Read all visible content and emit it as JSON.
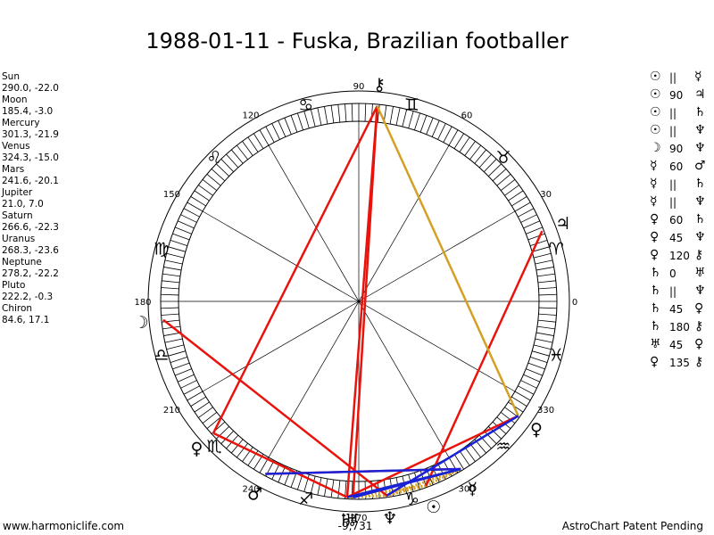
{
  "title": "1988-01-11 - Fuska, Brazilian footballer",
  "positions": [
    {
      "name": "Sun",
      "coords": "290.0, -22.0"
    },
    {
      "name": "Moon",
      "coords": "185.4, -3.0"
    },
    {
      "name": "Mercury",
      "coords": "301.3, -21.9"
    },
    {
      "name": "Venus",
      "coords": "324.3, -15.0"
    },
    {
      "name": "Mars",
      "coords": "241.6, -20.1"
    },
    {
      "name": "Jupiter",
      "coords": "21.0, 7.0"
    },
    {
      "name": "Saturn",
      "coords": "266.6, -22.3"
    },
    {
      "name": "Uranus",
      "coords": "268.3, -23.6"
    },
    {
      "name": "Neptune",
      "coords": "278.2, -22.2"
    },
    {
      "name": "Pluto",
      "coords": "222.2, -0.3"
    },
    {
      "name": "Chiron",
      "coords": "84.6, 17.1"
    }
  ],
  "aspects": [
    {
      "a": "☉",
      "m": "||",
      "b": "☿"
    },
    {
      "a": "☉",
      "m": "90",
      "b": "♃"
    },
    {
      "a": "☉",
      "m": "||",
      "b": "♄"
    },
    {
      "a": "☉",
      "m": "||",
      "b": "♆"
    },
    {
      "a": "☽",
      "m": "90",
      "b": "♆"
    },
    {
      "a": "☿",
      "m": "60",
      "b": "♂"
    },
    {
      "a": "☿",
      "m": "||",
      "b": "♄"
    },
    {
      "a": "☿",
      "m": "||",
      "b": "♆"
    },
    {
      "a": "♀",
      "m": "60",
      "b": "♄"
    },
    {
      "a": "♀",
      "m": "45",
      "b": "♆"
    },
    {
      "a": "♀",
      "m": "120",
      "b": "⚷"
    },
    {
      "a": "♄",
      "m": "0",
      "b": "♅"
    },
    {
      "a": "♄",
      "m": "||",
      "b": "♆"
    },
    {
      "a": "♄",
      "m": "45",
      "b": "♀"
    },
    {
      "a": "♄",
      "m": "180",
      "b": "⚷"
    },
    {
      "a": "♅",
      "m": "45",
      "b": "♀"
    },
    {
      "a": "♀",
      "m": "135",
      "b": "⚷"
    }
  ],
  "wheel": {
    "degree_labels": [
      {
        "text": "0",
        "deg": 0
      },
      {
        "text": "30",
        "deg": 30
      },
      {
        "text": "60",
        "deg": 60
      },
      {
        "text": "90",
        "deg": 90
      },
      {
        "text": "120",
        "deg": 120
      },
      {
        "text": "150",
        "deg": 150
      },
      {
        "text": "180",
        "deg": 180
      },
      {
        "text": "210",
        "deg": 210
      },
      {
        "text": "240",
        "deg": 240
      },
      {
        "text": "270",
        "deg": 270
      },
      {
        "text": "300",
        "deg": 300
      },
      {
        "text": "330",
        "deg": 330
      }
    ],
    "bottom_readout": "-9,731",
    "signs": [
      {
        "glyph": "♈",
        "deg": 15,
        "name": "aries"
      },
      {
        "glyph": "♉",
        "deg": 45,
        "name": "taurus"
      },
      {
        "glyph": "♊",
        "deg": 75,
        "name": "gemini"
      },
      {
        "glyph": "♋",
        "deg": 105,
        "name": "cancer"
      },
      {
        "glyph": "♌",
        "deg": 135,
        "name": "leo"
      },
      {
        "glyph": "♍",
        "deg": 165,
        "name": "virgo"
      },
      {
        "glyph": "♎",
        "deg": 195,
        "name": "libra"
      },
      {
        "glyph": "♏",
        "deg": 225,
        "name": "scorpio"
      },
      {
        "glyph": "♐",
        "deg": 255,
        "name": "sagittarius"
      },
      {
        "glyph": "♑",
        "deg": 285,
        "name": "capricorn"
      },
      {
        "glyph": "♒",
        "deg": 315,
        "name": "aquarius"
      },
      {
        "glyph": "♓",
        "deg": 345,
        "name": "pisces"
      }
    ],
    "planets": [
      {
        "glyph": "☉",
        "deg": 290.0,
        "name": "sun"
      },
      {
        "glyph": "☽",
        "deg": 185.4,
        "name": "moon"
      },
      {
        "glyph": "☿",
        "deg": 301.3,
        "name": "mercury"
      },
      {
        "glyph": "♀",
        "deg": 324.3,
        "name": "venus"
      },
      {
        "glyph": "♂",
        "deg": 241.6,
        "name": "mars"
      },
      {
        "glyph": "♃",
        "deg": 21.0,
        "name": "jupiter"
      },
      {
        "glyph": "♄",
        "deg": 266.6,
        "name": "saturn"
      },
      {
        "glyph": "♅",
        "deg": 268.3,
        "name": "uranus"
      },
      {
        "glyph": "♆",
        "deg": 278.2,
        "name": "neptune"
      },
      {
        "glyph": "♀",
        "deg": 222.2,
        "name": "pluto"
      },
      {
        "glyph": "⚷",
        "deg": 84.6,
        "name": "chiron"
      }
    ],
    "aspect_lines": [
      {
        "from": 301.3,
        "to": 241.6,
        "color": "#e8140c"
      },
      {
        "from": 324.3,
        "to": 266.6,
        "color": "#e8140c"
      },
      {
        "from": 290.0,
        "to": 21.0,
        "color": "#e8140c"
      },
      {
        "from": 185.4,
        "to": 278.2,
        "color": "#e8140c"
      },
      {
        "from": 268.3,
        "to": 84.6,
        "color": "#e8140c"
      },
      {
        "from": 266.6,
        "to": 84.6,
        "color": "#e8140c"
      },
      {
        "from": 222.2,
        "to": 84.6,
        "color": "#e8140c"
      },
      {
        "from": 222.2,
        "to": 266.6,
        "color": "#e8140c"
      },
      {
        "from": 324.3,
        "to": 84.6,
        "color": "#d4a024"
      },
      {
        "from": 324.3,
        "to": 278.2,
        "color": "#1a22d8"
      },
      {
        "from": 268.3,
        "to": 301.3,
        "color": "#1a22d8"
      },
      {
        "from": 241.6,
        "to": 301.3,
        "color": "#1a22d8"
      },
      {
        "from": 266.6,
        "to": 301.3,
        "color": "#1a22d8"
      }
    ],
    "parallel_lines": [
      {
        "from": 290.0,
        "to": 301.3
      },
      {
        "from": 290.0,
        "to": 266.6
      },
      {
        "from": 290.0,
        "to": 278.2
      },
      {
        "from": 301.3,
        "to": 266.6
      },
      {
        "from": 301.3,
        "to": 278.2
      },
      {
        "from": 266.6,
        "to": 278.2
      }
    ]
  },
  "footer": {
    "left": "www.harmoniclife.com",
    "right": "AstroChart Patent Pending"
  }
}
